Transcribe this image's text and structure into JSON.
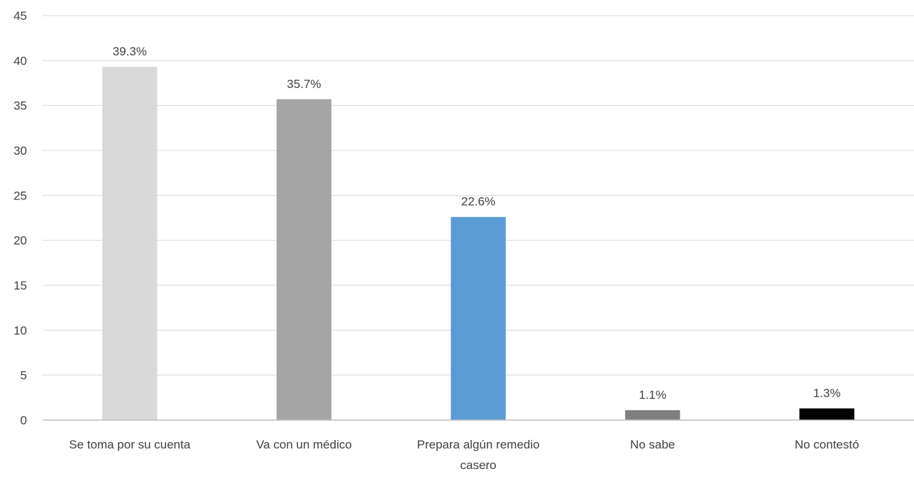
{
  "chart_data": {
    "type": "bar",
    "title": "",
    "xlabel": "",
    "ylabel": "",
    "ylim": [
      0,
      45
    ],
    "yticks": [
      0,
      5,
      10,
      15,
      20,
      25,
      30,
      35,
      40,
      45
    ],
    "grid": true,
    "legend": "none",
    "categories": [
      [
        "Se toma por su cuenta"
      ],
      [
        "Va con un médico"
      ],
      [
        "Prepara algún remedio",
        "casero"
      ],
      [
        "No sabe"
      ],
      [
        "No contestó"
      ]
    ],
    "values": [
      39.3,
      35.7,
      22.6,
      1.1,
      1.3
    ],
    "data_labels": [
      "39.3%",
      "35.7%",
      "22.6%",
      "1.1%",
      "1.3%"
    ],
    "colors": [
      "#d9d9d9",
      "#a5a5a5",
      "#5b9bd5",
      "#7f7f7f",
      "#000000"
    ],
    "gridline_color": "#d9d9d9",
    "axis_color": "#bfbfbf"
  }
}
